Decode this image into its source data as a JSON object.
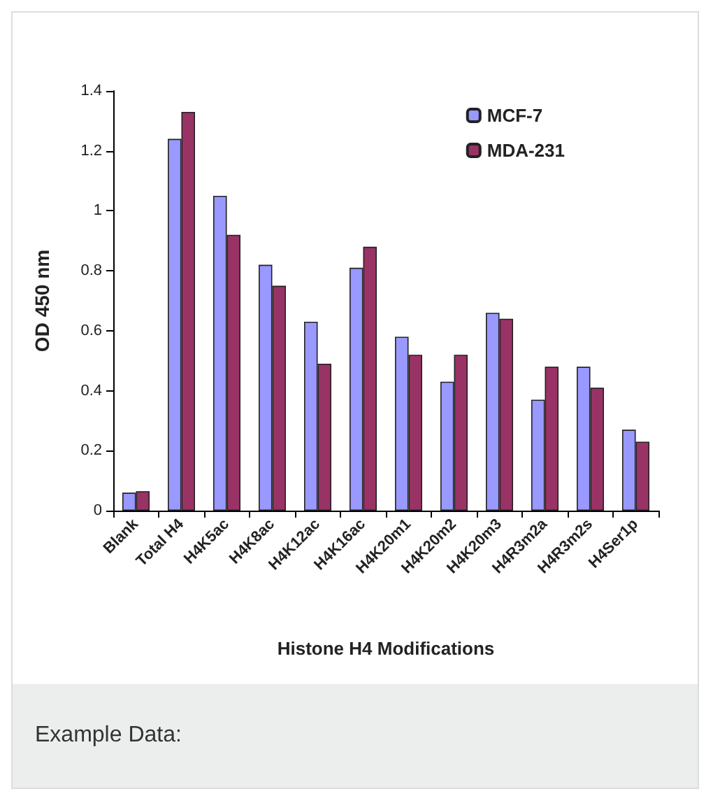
{
  "chart_data": {
    "type": "bar",
    "xlabel": "Histone H4 Modifications",
    "ylabel": "OD 450 nm",
    "categories": [
      "Blank",
      "Total H4",
      "H4K5ac",
      "H4K8ac",
      "H4K12ac",
      "H4K16ac",
      "H4K20m1",
      "H4K20m2",
      "H4K20m3",
      "H4R3m2a",
      "H4R3m2s",
      "H4Ser1p"
    ],
    "series": [
      {
        "name": "MCF-7",
        "color": "#9999ff",
        "values": [
          0.06,
          1.24,
          1.05,
          0.82,
          0.63,
          0.81,
          0.58,
          0.43,
          0.66,
          0.37,
          0.48,
          0.27
        ]
      },
      {
        "name": "MDA-231",
        "color": "#993366",
        "values": [
          0.065,
          1.33,
          0.92,
          0.75,
          0.49,
          0.88,
          0.52,
          0.52,
          0.64,
          0.48,
          0.41,
          0.23
        ]
      }
    ],
    "ylim": [
      0,
      1.4
    ],
    "yticks": [
      0,
      0.2,
      0.4,
      0.6,
      0.8,
      1,
      1.2,
      1.4
    ],
    "grid": false,
    "legend": "top right",
    "annotations": [
      "Example Data:"
    ]
  }
}
